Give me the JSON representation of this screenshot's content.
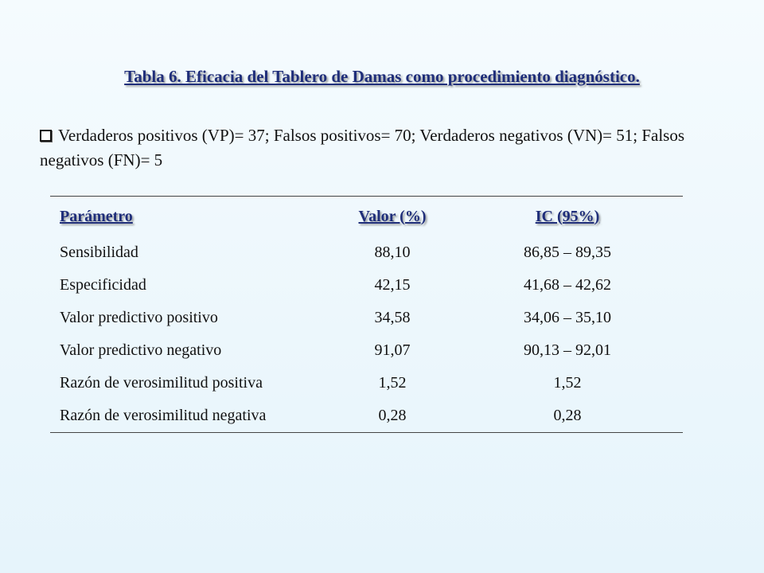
{
  "title": "Tabla 6. Eficacia del Tablero de Damas como procedimiento diagnóstico.",
  "bullet": {
    "icon": "checkbox-bullet-icon",
    "text": "Verdaderos positivos (VP)= 37; Falsos positivos= 70; Verdaderos negativos (VN)= 51; Falsos negativos (FN)= 5"
  },
  "table": {
    "headers": [
      "Parámetro",
      "Valor (%)",
      "IC (95%)"
    ],
    "rows": [
      [
        "Sensibilidad",
        "88,10",
        "86,85 – 89,35"
      ],
      [
        "Especificidad",
        "42,15",
        "41,68 – 42,62"
      ],
      [
        "Valor predictivo positivo",
        "34,58",
        "34,06 – 35,10"
      ],
      [
        "Valor predictivo negativo",
        "91,07",
        "90,13 – 92,01"
      ],
      [
        "Razón de verosimilitud positiva",
        "1,52",
        "1,52"
      ],
      [
        "Razón de verosimilitud negativa",
        "0,28",
        "0,28"
      ]
    ]
  },
  "colors": {
    "heading": "#1f2e7a",
    "background_top": "#f5fbfe",
    "background_bottom": "#e6f4fb"
  }
}
